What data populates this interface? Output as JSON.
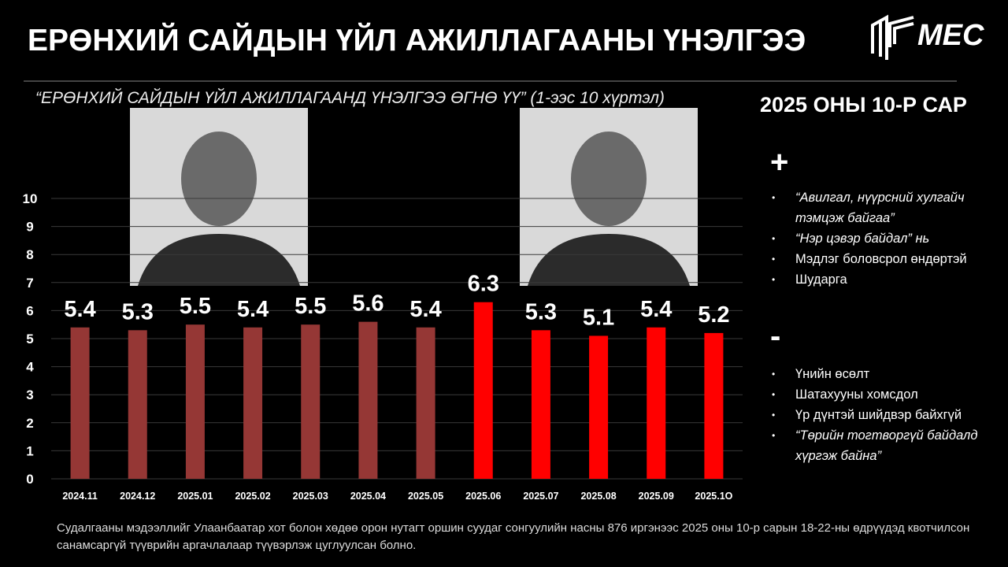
{
  "header": {
    "title": "ЕРӨНХИЙ САЙДЫН ҮЙЛ АЖИЛЛАГААНЫ ҮНЭЛГЭЭ",
    "logo": "MEC"
  },
  "chart_data": {
    "type": "bar",
    "subtitle": "“ЕРӨНХИЙ САЙДЫН ҮЙЛ АЖИЛЛАГААНД ҮНЭЛГЭЭ ӨГНӨ ҮҮ” (1-ээс 10 хүртэл)",
    "categories": [
      "2024.11",
      "2024.12",
      "2025.01",
      "2025.02",
      "2025.03",
      "2025.04",
      "2025.05",
      "2025.06",
      "2025.07",
      "2025.08",
      "2025.09",
      "2025.1O"
    ],
    "values": [
      5.4,
      5.3,
      5.5,
      5.4,
      5.5,
      5.6,
      5.4,
      6.3,
      5.3,
      5.1,
      5.4,
      5.2
    ],
    "colors": [
      "#953735",
      "#953735",
      "#953735",
      "#953735",
      "#953735",
      "#953735",
      "#953735",
      "#ff0000",
      "#ff0000",
      "#ff0000",
      "#ff0000",
      "#ff0000"
    ],
    "ylim": [
      0,
      10
    ],
    "yticks": [
      0,
      1,
      2,
      3,
      4,
      5,
      6,
      7,
      8,
      9,
      10
    ],
    "grid": true
  },
  "panel": {
    "period": "2025 ОНЫ 10-Р САР",
    "pros_heading": "+",
    "pros": [
      "“Авилгал, нүүрсний хулгайч тэмцэж байгаа”",
      "“Нэр цэвэр байдал” нь",
      "Мэдлэг боловсрол өндөртэй",
      "Шударга"
    ],
    "cons_heading": "-",
    "cons": [
      "Үнийн өсөлт",
      "Шатахууны хомсдол",
      "Үр дүнтэй шийдвэр байхгүй",
      "“Төрийн тогтворгүй байдалд хүргэж байна”"
    ]
  },
  "footer": "Судалгааны мэдээллийг Улаанбаатар хот болон хөдөө орон нутагт оршин суудаг сонгуулийн насны 876 иргэнээс 2025 оны 10-р сарын 18-22-ны өдрүүдэд квотчилсон санамсаргүй түүврийн аргачлалаар түүвэрлэж цуглуулсан болно."
}
